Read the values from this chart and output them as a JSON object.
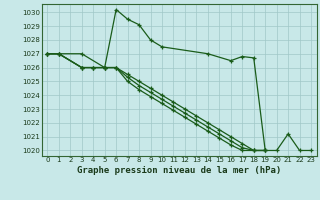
{
  "title": "Graphe pression niveau de la mer (hPa)",
  "bg_color": "#c8e8e8",
  "line_color": "#1a5c1a",
  "grid_color_major": "#a0c8c8",
  "grid_color_minor": "#b8d8d8",
  "ylim": [
    1019.6,
    1030.6
  ],
  "xlim": [
    -0.5,
    23.5
  ],
  "yticks": [
    1020,
    1021,
    1022,
    1023,
    1024,
    1025,
    1026,
    1027,
    1028,
    1029,
    1030
  ],
  "xticks": [
    0,
    1,
    2,
    3,
    4,
    5,
    6,
    7,
    8,
    9,
    10,
    11,
    12,
    13,
    14,
    15,
    16,
    17,
    18,
    19,
    20,
    21,
    22,
    23
  ],
  "series": [
    {
      "x": [
        0,
        1,
        3,
        5,
        6,
        7,
        8,
        9,
        10,
        14,
        16,
        17,
        18,
        19,
        20,
        21,
        22,
        23
      ],
      "y": [
        1027,
        1027,
        1027,
        1026,
        1030.2,
        1029.5,
        1029.1,
        1028,
        1027.5,
        1027,
        1026.5,
        1026.8,
        1026.7,
        1020,
        1020,
        1021.2,
        1020,
        1020
      ]
    },
    {
      "x": [
        0,
        1,
        3,
        4,
        5,
        6,
        7,
        8,
        9,
        10,
        11,
        12,
        13,
        14,
        15,
        16,
        17,
        18,
        19
      ],
      "y": [
        1027,
        1027,
        1026,
        1026,
        1026,
        1026,
        1025.5,
        1025.0,
        1024.5,
        1024.0,
        1023.5,
        1023.0,
        1022.5,
        1022.0,
        1021.5,
        1021.0,
        1020.5,
        1020.0,
        1020
      ]
    },
    {
      "x": [
        0,
        1,
        3,
        4,
        5,
        6,
        7,
        8,
        9,
        10,
        11,
        12,
        13,
        14,
        15,
        16,
        17,
        18,
        19
      ],
      "y": [
        1027,
        1027,
        1026,
        1026,
        1026,
        1026,
        1025.3,
        1024.7,
        1024.2,
        1023.7,
        1023.2,
        1022.7,
        1022.2,
        1021.7,
        1021.2,
        1020.7,
        1020.2,
        1020.0,
        1020
      ]
    },
    {
      "x": [
        0,
        1,
        3,
        4,
        5,
        6,
        7,
        8,
        9,
        10,
        11,
        12,
        13,
        14,
        15,
        16,
        17,
        18,
        19
      ],
      "y": [
        1027,
        1027,
        1026,
        1026,
        1026,
        1026,
        1025.0,
        1024.4,
        1023.9,
        1023.4,
        1022.9,
        1022.4,
        1021.9,
        1021.4,
        1020.9,
        1020.4,
        1020.0,
        1020.0,
        1020
      ]
    }
  ]
}
